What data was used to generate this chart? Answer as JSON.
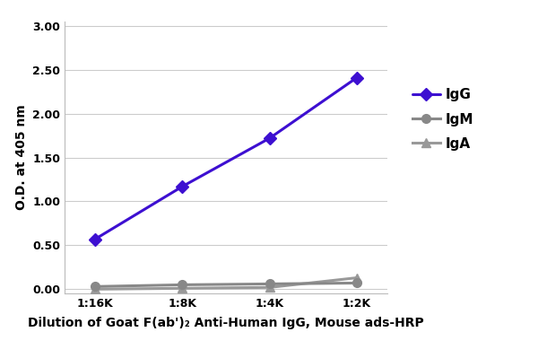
{
  "x_labels": [
    "1:16K",
    "1:8K",
    "1:4K",
    "1:2K"
  ],
  "x_values": [
    0,
    1,
    2,
    3
  ],
  "IgG_values": [
    0.57,
    1.17,
    1.72,
    2.41
  ],
  "IgM_values": [
    0.03,
    0.05,
    0.06,
    0.07
  ],
  "IgA_values": [
    0.0,
    0.01,
    0.02,
    0.13
  ],
  "IgG_color": "#3d0fd1",
  "IgM_color": "#888888",
  "IgA_color": "#999999",
  "ylabel": "O.D. at 405 nm",
  "xlabel": "Dilution of Goat F(ab')₂ Anti-Human IgG, Mouse ads-HRP",
  "ylim": [
    -0.05,
    3.05
  ],
  "yticks": [
    0.0,
    0.5,
    1.0,
    1.5,
    2.0,
    2.5,
    3.0
  ],
  "ytick_labels": [
    "0.00",
    "0.50",
    "1.00",
    "1.50",
    "2.00",
    "2.50",
    "3.00"
  ],
  "background_color": "#ffffff",
  "grid_color": "#cccccc",
  "line_width": 2.2,
  "marker_size": 7,
  "tick_fontsize": 9,
  "label_fontsize": 10,
  "legend_fontsize": 11
}
